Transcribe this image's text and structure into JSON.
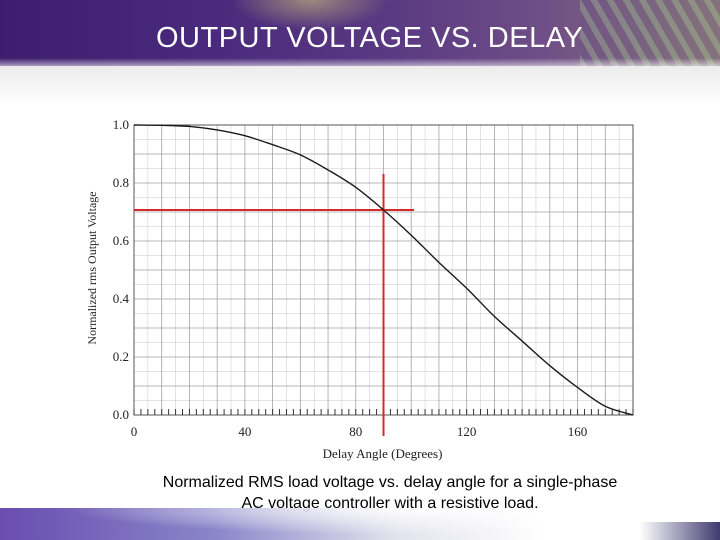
{
  "slide": {
    "title": "OUTPUT VOLTAGE VS. DELAY",
    "caption_line1": "Normalized RMS load voltage vs. delay angle for a single-phase",
    "caption_line2": "AC voltage controller with a resistive load."
  },
  "colors": {
    "curve": "#1a1a1a",
    "marker": "#d42a2a",
    "grid": "#9a9a9a",
    "title_bar": "#4a2a7c"
  },
  "chart_data": {
    "type": "line",
    "xlabel": "Delay Angle (Degrees)",
    "ylabel": "Normalized rms Output Voltage",
    "xlim": [
      0,
      180
    ],
    "ylim": [
      0,
      1
    ],
    "x_ticks": [
      0,
      40,
      80,
      120,
      160
    ],
    "y_ticks": [
      0.0,
      0.2,
      0.4,
      0.6,
      0.8,
      1.0
    ],
    "y_tick_labels": [
      "0.0",
      "0.2",
      "0.4",
      "0.6",
      "0.8",
      "1.0"
    ],
    "grid": true,
    "series": [
      {
        "x": [
          0,
          10,
          20,
          30,
          40,
          50,
          60,
          70,
          80,
          90,
          100,
          110,
          120,
          130,
          140,
          150,
          160,
          170,
          180
        ],
        "y": [
          1.0,
          0.999,
          0.995,
          0.983,
          0.963,
          0.932,
          0.897,
          0.845,
          0.785,
          0.707,
          0.62,
          0.526,
          0.437,
          0.34,
          0.255,
          0.17,
          0.095,
          0.03,
          0.0
        ]
      }
    ],
    "marker": {
      "x": 90,
      "y": 0.707
    }
  }
}
